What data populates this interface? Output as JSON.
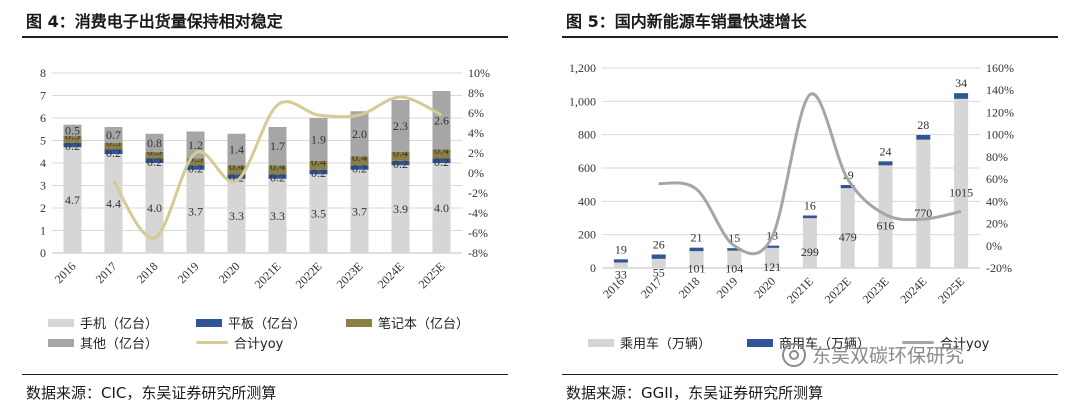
{
  "colors": {
    "light_gray": "#d6d6d6",
    "navy": "#2f5597",
    "olive": "#8c7f44",
    "dark_gray": "#a6a6a6",
    "yoy_left": "#d4cb95",
    "yoy_right": "#a6a6a6",
    "grid": "#d9d9d9"
  },
  "left": {
    "title": "图 4：消费电子出货量保持相对稳定",
    "source": "数据来源：CIC，东吴证券研究所测算",
    "legend": {
      "phone": "手机（亿台）",
      "tablet": "平板（亿台）",
      "laptop": "笔记本（亿台）",
      "other": "其他（亿台）",
      "yoy": "合计yoy"
    }
  },
  "right": {
    "title": "图 5：国内新能源车销量快速增长",
    "source": "数据来源：GGII，东吴证券研究所测算",
    "legend": {
      "passenger": "乘用车（万辆）",
      "commercial": "商用车（万辆）",
      "yoy": "合计yoy"
    },
    "watermark": "东吴双碳环保研究"
  },
  "chart_data": [
    {
      "type": "bar",
      "stacked": true,
      "title": "图 4：消费电子出货量保持相对稳定",
      "categories": [
        "2016",
        "2017",
        "2018",
        "2019",
        "2020",
        "2021E",
        "2022E",
        "2023E",
        "2024E",
        "2025E"
      ],
      "series": [
        {
          "name": "手机（亿台）",
          "values": [
            4.7,
            4.4,
            4.0,
            3.7,
            3.3,
            3.3,
            3.5,
            3.7,
            3.9,
            4.0
          ],
          "labels": [
            "4.7",
            "4.4",
            "4.0",
            "3.7",
            "3.3",
            "3.3",
            "3.5",
            "3.7",
            "3.9",
            "4.0"
          ]
        },
        {
          "name": "平板（亿台）",
          "values": [
            0.2,
            0.2,
            0.2,
            0.2,
            0.2,
            0.2,
            0.2,
            0.2,
            0.2,
            0.2
          ],
          "labels": [
            "0.2",
            "0.2",
            "0.2",
            "0.2",
            "0.2",
            "0.2",
            "0.2",
            "0.2",
            "0.2",
            "0.2"
          ]
        },
        {
          "name": "笔记本（亿台）",
          "values": [
            0.3,
            0.3,
            0.3,
            0.3,
            0.4,
            0.4,
            0.4,
            0.4,
            0.4,
            0.4
          ],
          "labels": [
            "0.3",
            "0.3",
            "0.3",
            "0.3",
            "0.4",
            "0.4",
            "0.4",
            "0.4",
            "0.4",
            "0.4"
          ]
        },
        {
          "name": "其他（亿台）",
          "values": [
            0.5,
            0.7,
            0.8,
            1.2,
            1.4,
            1.7,
            1.9,
            2.0,
            2.3,
            2.6
          ],
          "labels": [
            "0.5",
            "0.7",
            "0.8",
            "1.2",
            "1.4",
            "1.7",
            "1.9",
            "2.0",
            "2.3",
            "2.6"
          ]
        }
      ],
      "secondary_series": {
        "name": "合计yoy",
        "type": "line",
        "values": [
          null,
          -0.8,
          -6.5,
          2.0,
          -0.8,
          6.8,
          5.8,
          5.8,
          7.6,
          5.8
        ]
      },
      "ylim": [
        0,
        8
      ],
      "yticks": [
        "0",
        "1",
        "2",
        "3",
        "4",
        "5",
        "6",
        "7",
        "8"
      ],
      "y2lim": [
        -8,
        10
      ],
      "y2ticks": [
        "-8%",
        "-6%",
        "-4%",
        "-2%",
        "0%",
        "2%",
        "4%",
        "6%",
        "8%",
        "10%"
      ],
      "legend_position": "bottom"
    },
    {
      "type": "bar",
      "stacked": true,
      "title": "图 5：国内新能源车销量快速增长",
      "categories": [
        "2016",
        "2017",
        "2018",
        "2019",
        "2020",
        "2021E",
        "2022E",
        "2023E",
        "2024E",
        "2025E"
      ],
      "series": [
        {
          "name": "乘用车（万辆）",
          "values": [
            33,
            55,
            101,
            104,
            121,
            299,
            479,
            616,
            770,
            1015
          ],
          "labels": [
            "33",
            "55",
            "101",
            "104",
            "121",
            "299",
            "479",
            "616",
            "770",
            "1015"
          ]
        },
        {
          "name": "商用车（万辆）",
          "values": [
            19,
            26,
            21,
            15,
            13,
            16,
            19,
            24,
            28,
            34
          ],
          "labels": [
            "19",
            "26",
            "21",
            "15",
            "13",
            "16",
            "19",
            "24",
            "28",
            "34"
          ]
        }
      ],
      "secondary_series": {
        "name": "合计yoy",
        "type": "line",
        "values": [
          null,
          56,
          51,
          0,
          8,
          136,
          60,
          28,
          24,
          31
        ]
      },
      "ylim": [
        0,
        1200
      ],
      "yticks": [
        "0",
        "200",
        "400",
        "600",
        "800",
        "1,000",
        "1,200"
      ],
      "y2lim": [
        -20,
        160
      ],
      "y2ticks": [
        "-20%",
        "0%",
        "20%",
        "40%",
        "60%",
        "80%",
        "100%",
        "120%",
        "140%",
        "160%"
      ],
      "legend_position": "bottom"
    }
  ]
}
